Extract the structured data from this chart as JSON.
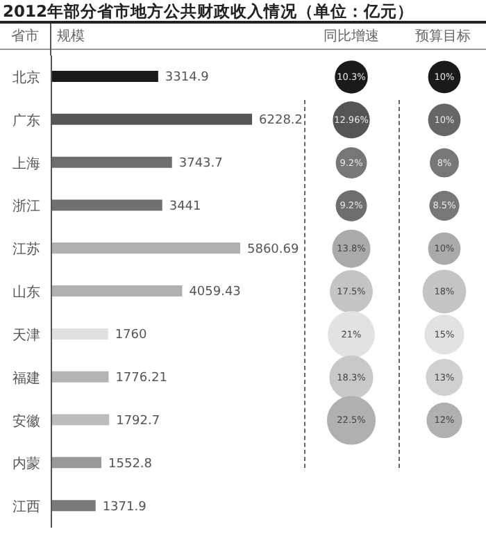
{
  "chart_data": [
    {
      "type": "bar",
      "orientation": "horizontal",
      "title": "2012年部分省市地方公共财政收入情况（单位：亿元）",
      "ylabel": "省市",
      "xlabel": "规模",
      "categories": [
        "北京",
        "广东",
        "上海",
        "浙江",
        "江苏",
        "山东",
        "天津",
        "福建",
        "安徽",
        "内蒙",
        "江西"
      ],
      "values": [
        3314.9,
        6228.2,
        3743.7,
        3441,
        5860.69,
        4059.43,
        1760,
        1776.21,
        1792.7,
        1552.8,
        1371.9
      ],
      "colors": [
        "#1a1a1a",
        "#555555",
        "#6e6e6e",
        "#707070",
        "#b0b0b0",
        "#b0b0b0",
        "#e0e0e0",
        "#b5b5b5",
        "#bcbcbc",
        "#999999",
        "#7a7a7a"
      ],
      "data_labels": true
    },
    {
      "type": "other",
      "title": "同比增速",
      "values": [
        10.3,
        12.96,
        9.2,
        9.2,
        13.8,
        17.5,
        21,
        18.3,
        22.5,
        null,
        null
      ],
      "value_labels": [
        "10.3%",
        "12.96%",
        "9.2%",
        "9.2%",
        "13.8%",
        "17.5%",
        "21%",
        "18.3%",
        "22.5%",
        null,
        null
      ],
      "colors": [
        "#1a1a1a",
        "#555555",
        "#777777",
        "#6e6e6e",
        "#aaaaaa",
        "#c4c4c4",
        "#e2e2e2",
        "#c8c8c8",
        "#b0b0b0",
        null,
        null
      ]
    },
    {
      "type": "other",
      "title": "预算目标",
      "values": [
        10,
        10,
        8,
        8.5,
        10,
        18,
        15,
        13,
        12,
        null,
        null
      ],
      "value_labels": [
        "10%",
        "10%",
        "8%",
        "8.5%",
        "10%",
        "18%",
        "15%",
        "13%",
        "12%",
        null,
        null
      ],
      "colors": [
        "#1a1a1a",
        "#666666",
        "#777777",
        "#777777",
        "#aaaaaa",
        "#c4c4c4",
        "#e2e2e2",
        "#d0d0d0",
        "#b0b0b0",
        null,
        null
      ]
    }
  ]
}
